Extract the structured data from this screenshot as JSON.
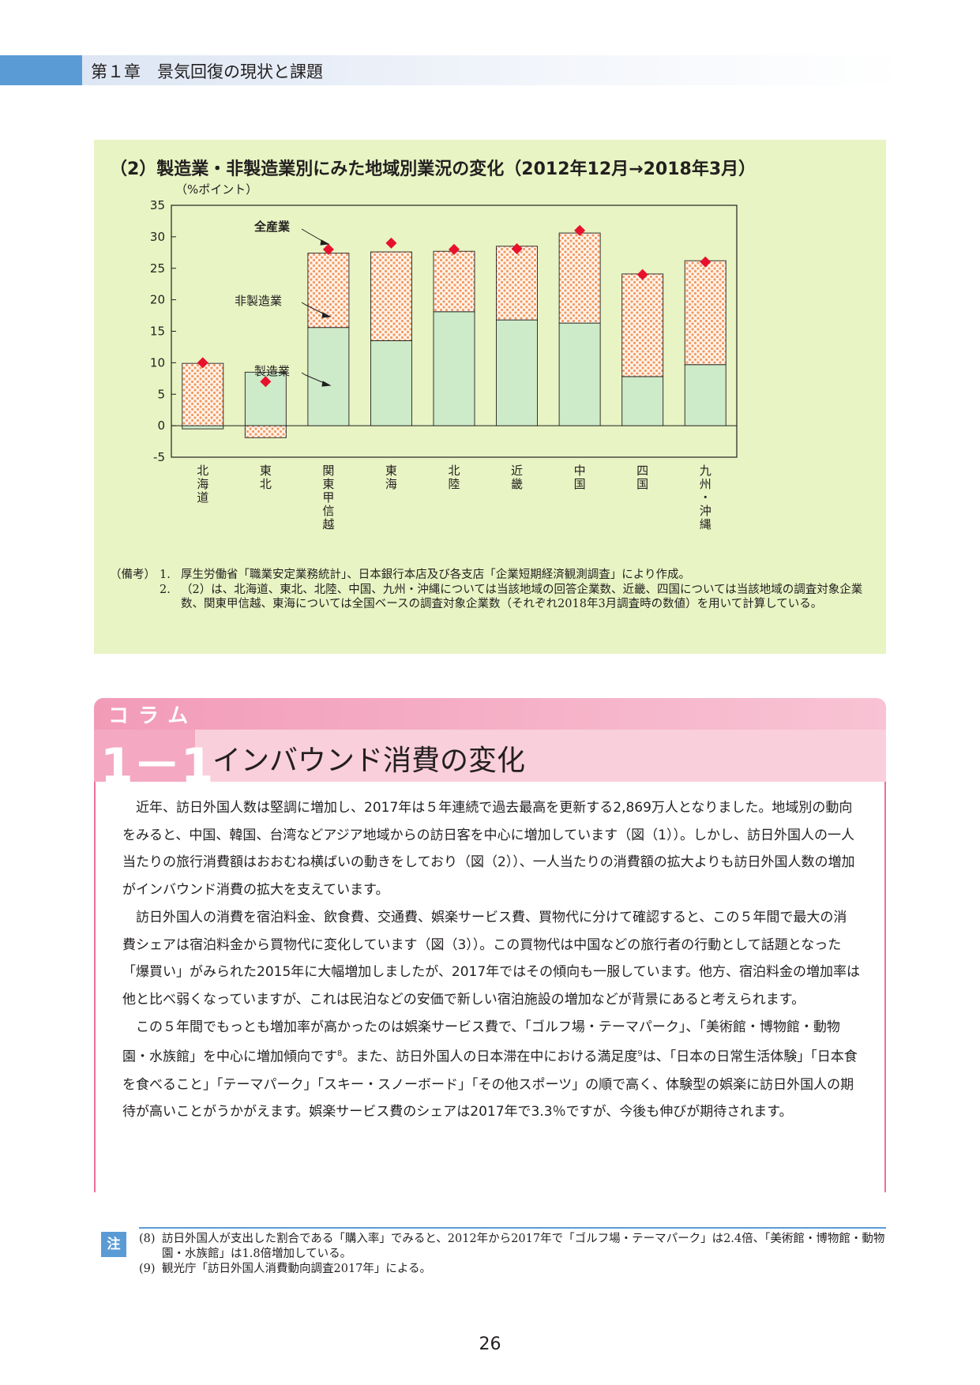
{
  "header": {
    "chapter": "第１章　景気回復の現状と課題"
  },
  "figure": {
    "title": "（2）製造業・非製造業別にみた地域別業況の変化（2012年12月→2018年3月）",
    "unit": "（%ポイント）",
    "annotations": {
      "all": "全産業",
      "nonmanu": "非製造業",
      "manu": "製造業"
    },
    "notes": {
      "head": "（備考）",
      "items": [
        {
          "num": "1.",
          "text": "厚生労働省「職業安定業務統計」、日本銀行本店及び各支店「企業短期経済観測調査」により作成。"
        },
        {
          "num": "2.",
          "text": "（2）は、北海道、東北、北陸、中国、九州・沖縄については当該地域の回答企業数、近畿、四国については当該地域の調査対象企業数、関東甲信越、東海については全国ベースの調査対象企業数（それぞれ2018年3月調査時の数値）を用いて計算している。"
        }
      ]
    }
  },
  "chart_data": {
    "type": "bar",
    "title": "（2）製造業・非製造業別にみた地域別業況の変化（2012年12月→2018年3月）",
    "ylabel": "（%ポイント）",
    "ylim": [
      -5,
      35
    ],
    "yticks": [
      "-5",
      "0",
      "5",
      "10",
      "15",
      "20",
      "25",
      "30",
      "35"
    ],
    "categories": [
      "北海道",
      "東北",
      "関東甲信越",
      "東海",
      "北陸",
      "近畿",
      "中国",
      "四国",
      "九州・沖縄"
    ],
    "series": [
      {
        "name": "製造業",
        "values": [
          -0.5,
          8.5,
          15.6,
          13.5,
          18.1,
          16.8,
          16.3,
          7.8,
          9.7
        ],
        "color": "#cdebc8"
      },
      {
        "name": "非製造業",
        "values": [
          9.9,
          -1.9,
          11.8,
          14.1,
          9.6,
          11.7,
          14.3,
          16.3,
          16.5
        ],
        "color": "#f5a572"
      },
      {
        "name": "全産業",
        "values": [
          10.0,
          7.0,
          28.0,
          29.0,
          28.0,
          28.1,
          31.0,
          24.0,
          26.0
        ],
        "color": "#e8112d"
      }
    ],
    "legend": "annotations inside plot"
  },
  "column": {
    "label": "コラム",
    "number": "1－1",
    "title": "インバウンド消費の変化",
    "paragraphs": [
      {
        "text": "近年、訪日外国人数は堅調に増加し、2017年は５年連続で過去最高を更新する2,869万人となりました。地域別の動向をみると、中国、韓国、台湾などアジア地域からの訪日客を中心に増加しています（図（1））。しかし、訪日外国人の一人当たりの旅行消費額はおおむね横ばいの動きをしており（図（2））、一人当たりの消費額の拡大よりも訪日外国人数の増加がインバウンド消費の拡大を支えています。"
      },
      {
        "text": "訪日外国人の消費を宿泊料金、飲食費、交通費、娯楽サービス費、買物代に分けて確認すると、この５年間で最大の消費シェアは宿泊料金から買物代に変化しています（図（3））。この買物代は中国などの旅行者の行動として話題となった「爆買い」がみられた2015年に大幅増加しましたが、2017年ではその傾向も一服しています。他方、宿泊料金の増加率は他と比べ弱くなっていますが、これは民泊などの安価で新しい宿泊施設の増加などが背景にあると考えられます。"
      },
      {
        "text": "この５年間でもっとも増加率が高かったのは娯楽サービス費で、「ゴルフ場・テーマパーク」、「美術館・博物館・動物園・水族館」を中心に増加傾向です",
        "sup1": "8",
        "mid": "。また、訪日外国人の日本滞在中における満足度",
        "sup2": "9",
        "tail": "は、「日本の日常生活体験」「日本食を食べること」「テーマパーク」「スキー・スノーボード」「その他スポーツ」の順で高く、体験型の娯楽に訪日外国人の期待が高いことがうかがえます。娯楽サービス費のシェアは2017年で3.3％ですが、今後も伸びが期待されます。"
      }
    ]
  },
  "footnotes": {
    "mark": "注",
    "items": [
      {
        "num": "(8)",
        "text": "訪日外国人が支出した割合である「購入率」でみると、2012年から2017年で「ゴルフ場・テーマパーク」は2.4倍、「美術館・博物館・動物園・水族館」は1.8倍増加している。"
      },
      {
        "num": "(9)",
        "text": "観光庁「訪日外国人消費動向調査2017年」による。"
      }
    ]
  },
  "page_number": "26"
}
